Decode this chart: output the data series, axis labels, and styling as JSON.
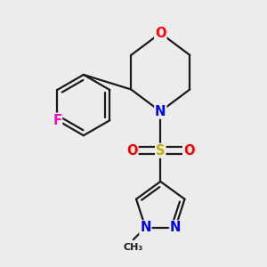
{
  "bg_color": "#ececec",
  "bond_color": "#1a1a1a",
  "bond_width": 1.6,
  "atom_colors": {
    "O": "#ff0000",
    "N": "#0000ff",
    "S": "#ccaa00",
    "F": "#ff00cc",
    "C": "#1a1a1a"
  },
  "font_size": 10.5
}
